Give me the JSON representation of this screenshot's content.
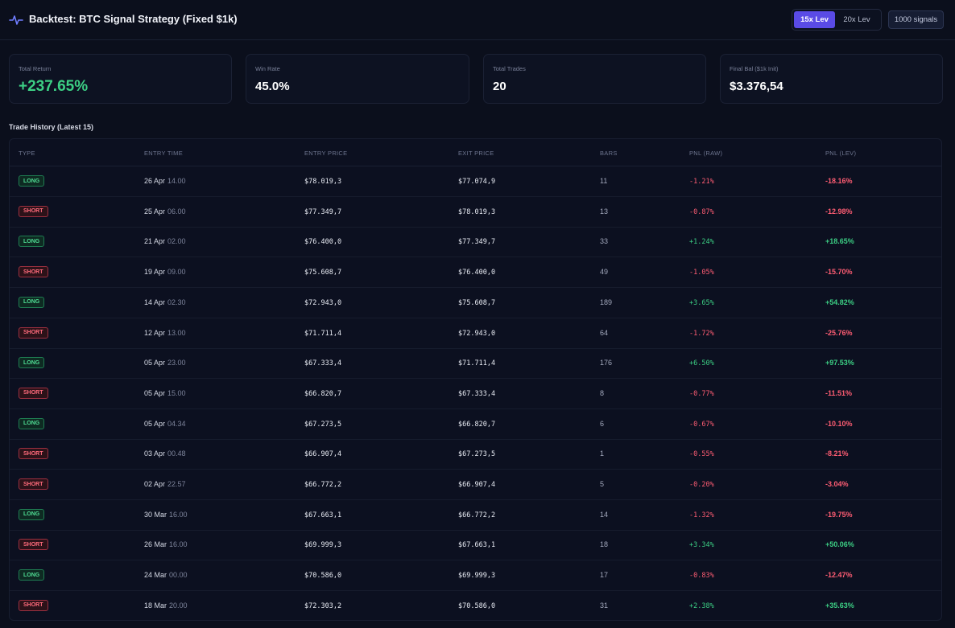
{
  "header": {
    "title": "Backtest: BTC Signal Strategy (Fixed $1k)",
    "leverage_options": [
      "15x Lev",
      "20x Lev"
    ],
    "active_leverage": "15x Lev",
    "signals_label": "1000 signals"
  },
  "stats": [
    {
      "label": "Total Return",
      "value": "+237.65%"
    },
    {
      "label": "Win Rate",
      "value": "45.0%"
    },
    {
      "label": "Total Trades",
      "value": "20"
    },
    {
      "label": "Final Bal ($1k Init)",
      "value": "$3.376,54"
    }
  ],
  "table": {
    "title": "Trade History (Latest 15)",
    "columns": [
      "TYPE",
      "ENTRY TIME",
      "ENTRY PRICE",
      "EXIT PRICE",
      "BARS",
      "PNL (RAW)",
      "PNL (LEV)"
    ],
    "rows": [
      {
        "type": "LONG",
        "date": "26 Apr",
        "time": "14.00",
        "entry": "$78.019,3",
        "exit": "$77.074,9",
        "bars": "11",
        "raw": "-1.21%",
        "lev": "-18.16%"
      },
      {
        "type": "SHORT",
        "date": "25 Apr",
        "time": "06.00",
        "entry": "$77.349,7",
        "exit": "$78.019,3",
        "bars": "13",
        "raw": "-0.87%",
        "lev": "-12.98%"
      },
      {
        "type": "LONG",
        "date": "21 Apr",
        "time": "02.00",
        "entry": "$76.400,0",
        "exit": "$77.349,7",
        "bars": "33",
        "raw": "+1.24%",
        "lev": "+18.65%"
      },
      {
        "type": "SHORT",
        "date": "19 Apr",
        "time": "09.00",
        "entry": "$75.608,7",
        "exit": "$76.400,0",
        "bars": "49",
        "raw": "-1.05%",
        "lev": "-15.70%"
      },
      {
        "type": "LONG",
        "date": "14 Apr",
        "time": "02.30",
        "entry": "$72.943,0",
        "exit": "$75.608,7",
        "bars": "189",
        "raw": "+3.65%",
        "lev": "+54.82%"
      },
      {
        "type": "SHORT",
        "date": "12 Apr",
        "time": "13.00",
        "entry": "$71.711,4",
        "exit": "$72.943,0",
        "bars": "64",
        "raw": "-1.72%",
        "lev": "-25.76%"
      },
      {
        "type": "LONG",
        "date": "05 Apr",
        "time": "23.00",
        "entry": "$67.333,4",
        "exit": "$71.711,4",
        "bars": "176",
        "raw": "+6.50%",
        "lev": "+97.53%"
      },
      {
        "type": "SHORT",
        "date": "05 Apr",
        "time": "15.00",
        "entry": "$66.820,7",
        "exit": "$67.333,4",
        "bars": "8",
        "raw": "-0.77%",
        "lev": "-11.51%"
      },
      {
        "type": "LONG",
        "date": "05 Apr",
        "time": "04.34",
        "entry": "$67.273,5",
        "exit": "$66.820,7",
        "bars": "6",
        "raw": "-0.67%",
        "lev": "-10.10%"
      },
      {
        "type": "SHORT",
        "date": "03 Apr",
        "time": "00.48",
        "entry": "$66.907,4",
        "exit": "$67.273,5",
        "bars": "1",
        "raw": "-0.55%",
        "lev": "-8.21%"
      },
      {
        "type": "SHORT",
        "date": "02 Apr",
        "time": "22.57",
        "entry": "$66.772,2",
        "exit": "$66.907,4",
        "bars": "5",
        "raw": "-0.20%",
        "lev": "-3.04%"
      },
      {
        "type": "LONG",
        "date": "30 Mar",
        "time": "16.00",
        "entry": "$67.663,1",
        "exit": "$66.772,2",
        "bars": "14",
        "raw": "-1.32%",
        "lev": "-19.75%"
      },
      {
        "type": "SHORT",
        "date": "26 Mar",
        "time": "16.00",
        "entry": "$69.999,3",
        "exit": "$67.663,1",
        "bars": "18",
        "raw": "+3.34%",
        "lev": "+50.06%"
      },
      {
        "type": "LONG",
        "date": "24 Mar",
        "time": "00.00",
        "entry": "$70.586,0",
        "exit": "$69.999,3",
        "bars": "17",
        "raw": "-0.83%",
        "lev": "-12.47%"
      },
      {
        "type": "SHORT",
        "date": "18 Mar",
        "time": "20.00",
        "entry": "$72.303,2",
        "exit": "$70.586,0",
        "bars": "31",
        "raw": "+2.38%",
        "lev": "+35.63%"
      }
    ]
  },
  "colors": {
    "accent": "#5a4be6",
    "positive": "#3ccf84",
    "negative": "#ff5d73",
    "background": "#0b0f1c"
  },
  "icons": {
    "header": "activity-pulse-icon"
  }
}
